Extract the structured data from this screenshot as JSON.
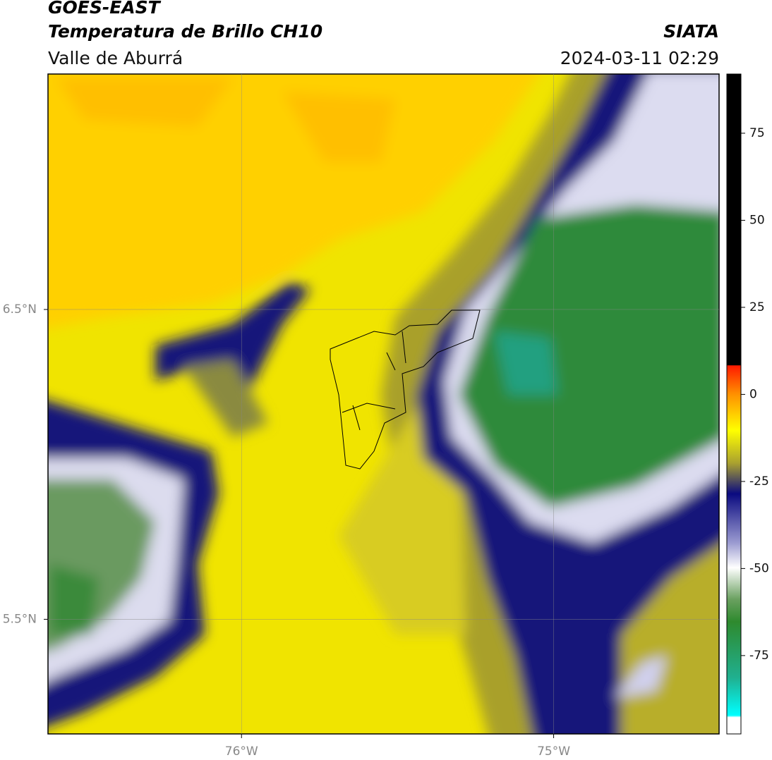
{
  "header": {
    "satellite": "GOES-EAST",
    "product": "Temperatura de Brillo CH10",
    "region": "Valle de Aburrá",
    "agency": "SIATA",
    "datetime": "2024-03-11 02:29"
  },
  "map": {
    "lonlim": [
      -76.62,
      -74.47
    ],
    "latlim": [
      5.13,
      7.26
    ],
    "xticks": [
      {
        "value": -76,
        "label": "76°W"
      },
      {
        "value": -75,
        "label": "75°W"
      }
    ],
    "yticks": [
      {
        "value": 6.5,
        "label": "6.5°N"
      },
      {
        "value": 5.5,
        "label": "5.5°N"
      }
    ],
    "grid": true
  },
  "colorbar": {
    "lim": [
      -97.5,
      92
    ],
    "ticks": [
      75,
      50,
      25,
      0,
      -25,
      -50,
      -75
    ]
  }
}
